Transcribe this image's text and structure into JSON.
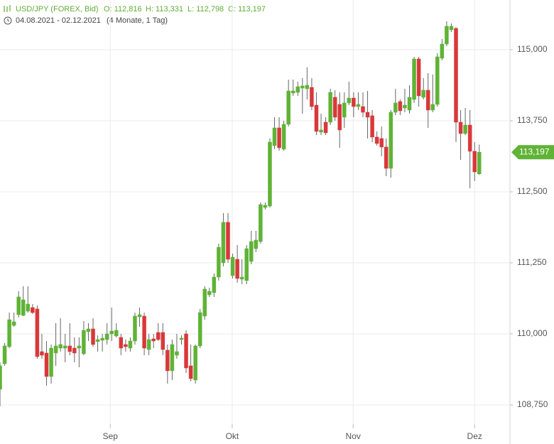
{
  "chart_data": {
    "type": "candlestick",
    "title": "USD/JPY (FOREX, Bid)",
    "ohlc_labels": [
      "O: 112,816",
      "H: 113,331",
      "L: 112,798",
      "C: 113,197"
    ],
    "date_range": "04.08.2021 - 02.12.2021",
    "duration": "(4 Monate, 1 Tag)",
    "last_label": "113,197",
    "up_color": "#5fb336",
    "down_color": "#d9383a",
    "grid": true,
    "ylim": [
      108.4125,
      115.875
    ],
    "yticks": [
      {
        "value": 108.75,
        "label": "108,750"
      },
      {
        "value": 110,
        "label": "110,000"
      },
      {
        "value": 111.25,
        "label": "111,250"
      },
      {
        "value": 112.5,
        "label": "112,500"
      },
      {
        "value": 113.75,
        "label": "113,750"
      },
      {
        "value": 115,
        "label": "115,000"
      }
    ],
    "xlim": [
      0,
      109.6
    ],
    "xticks": [
      {
        "value": 23.7,
        "label": "Sep"
      },
      {
        "value": 49.9,
        "label": "Okt"
      },
      {
        "value": 75.9,
        "label": "Nov"
      },
      {
        "value": 102,
        "label": "Dez"
      }
    ],
    "open": [
      109.025,
      109.475,
      109.775,
      110.15,
      110.338,
      110.325,
      110.4,
      110.463,
      110.438,
      109.688,
      109.663,
      109.25,
      109.663,
      109.75,
      109.75,
      109.788,
      109.75,
      109.75,
      109.65,
      110.038,
      110.088,
      109.863,
      109.888,
      109.9,
      110,
      109.963,
      109.938,
      109.813,
      109.75,
      109.875,
      110.3,
      110.313,
      109.725,
      109.913,
      110.025,
      110.025,
      109.713,
      109.35,
      109.625,
      109.9,
      110,
      109.438,
      109.188,
      109.788,
      110.313,
      110.688,
      110.725,
      111,
      111.25,
      111.963,
      111.025,
      111.313,
      110.963,
      110.938,
      111.275,
      111.5,
      111.625,
      112.225,
      112.25,
      113.313,
      113.625,
      113.25,
      113.688,
      114.238,
      114.25,
      114.325,
      114.313,
      114.338,
      114.025,
      113.55,
      113.725,
      113.725,
      114.163,
      114.038,
      113.813,
      114.063,
      114.15,
      114,
      114,
      113.9,
      113.838,
      113.463,
      113.438,
      113.288,
      112.913,
      113.9,
      114.088,
      113.975,
      113.938,
      114.125,
      114.838,
      114.163,
      114.288,
      113.938,
      114.038,
      114.85,
      115.1,
      115.35,
      115.375,
      113.725,
      113.525,
      113.675,
      113.213,
      112.816
    ],
    "high": [
      109.5,
      109.838,
      110.375,
      110.375,
      110.75,
      110.838,
      110.838,
      110.525,
      110.5,
      110,
      109.875,
      109.813,
      110.188,
      110.275,
      110,
      110.188,
      109.938,
      109.938,
      110.225,
      110.188,
      110.275,
      109.975,
      110,
      110.188,
      110.463,
      110.188,
      110,
      109.9,
      109.938,
      110.375,
      110.463,
      110.375,
      110,
      110,
      110.188,
      110.188,
      109.813,
      109.9,
      110,
      109.975,
      110.063,
      109.813,
      109.813,
      110.438,
      110.838,
      110.813,
      111.063,
      111.588,
      112.125,
      112.125,
      111.413,
      111.563,
      111.313,
      111.563,
      111.813,
      111.813,
      112.313,
      112.313,
      113.438,
      113.813,
      113.813,
      113.75,
      114.475,
      114.475,
      114.438,
      114.5,
      114.688,
      114.5,
      114.25,
      113.875,
      113.813,
      114.313,
      114.288,
      114.25,
      114.25,
      114.438,
      114.25,
      114.25,
      114.25,
      114.275,
      113.938,
      113.563,
      113.65,
      113.438,
      113.938,
      114.313,
      114.125,
      114.313,
      114.375,
      114.875,
      114.875,
      114.5,
      114.588,
      114.563,
      114.938,
      115.188,
      115.5,
      115.463,
      115.4,
      113.938,
      113.975,
      113.938,
      113.375,
      113.331
    ],
    "low": [
      108.725,
      109.438,
      109.75,
      110.125,
      110.288,
      110.313,
      110.375,
      110.35,
      109.563,
      109.563,
      109.088,
      109.125,
      109.438,
      109.688,
      109.5,
      109.625,
      109.5,
      109.413,
      109.625,
      109.875,
      109.775,
      109.688,
      109.688,
      109.813,
      109.875,
      109.938,
      109.625,
      109.688,
      109.688,
      109.813,
      110.125,
      109.625,
      109.625,
      109.75,
      109.875,
      109.625,
      109.125,
      109.188,
      109.563,
      109.813,
      109.313,
      109.163,
      109.125,
      109.75,
      110.25,
      110.65,
      110.65,
      110.938,
      111.188,
      111.25,
      110.975,
      110.9,
      110.875,
      110.875,
      111.225,
      111.438,
      111.588,
      112.188,
      112.225,
      113.25,
      113.225,
      113.225,
      113.65,
      114.188,
      114.188,
      113.875,
      114.125,
      113.938,
      113.5,
      113.5,
      113.5,
      113.675,
      113.75,
      113.275,
      113.625,
      114.025,
      113.813,
      113.938,
      113.813,
      113.438,
      113.375,
      113.313,
      113.125,
      112.775,
      112.75,
      113.85,
      113.85,
      113.9,
      113.875,
      114.063,
      114,
      114.125,
      113.625,
      113.9,
      114,
      114.813,
      115.063,
      115.313,
      113.375,
      113.063,
      113.5,
      112.563,
      112.688,
      112.798
    ],
    "close": [
      109.44,
      109.788,
      110.25,
      110.213,
      110.65,
      110.6,
      110.525,
      110.375,
      109.6,
      109.625,
      109.25,
      109.75,
      109.788,
      109.813,
      109.788,
      109.688,
      109.663,
      109.788,
      110.063,
      110.088,
      109.813,
      109.9,
      109.925,
      110,
      110.05,
      110.063,
      109.75,
      109.775,
      109.875,
      110.313,
      110.338,
      109.75,
      109.9,
      109.875,
      109.9,
      109.725,
      109.35,
      109.813,
      109.688,
      109.925,
      109.4,
      109.213,
      109.788,
      110.375,
      110.788,
      110.75,
      111,
      111.525,
      111.963,
      111.313,
      111.35,
      110.975,
      111,
      111.5,
      111.625,
      111.65,
      112.275,
      112.263,
      113.375,
      113.625,
      113.275,
      113.688,
      114.275,
      114.275,
      114.35,
      114.363,
      114.375,
      114,
      113.563,
      113.588,
      113.538,
      114.25,
      113.813,
      113.588,
      114.063,
      114.15,
      114,
      114.038,
      113.9,
      113.813,
      113.463,
      113.35,
      113.288,
      112.913,
      113.9,
      114.063,
      113.925,
      114.025,
      114.163,
      114.838,
      114.188,
      114.288,
      113.938,
      114.038,
      114.875,
      115.1,
      115.413,
      115.413,
      113.725,
      113.525,
      113.675,
      113.213,
      112.85,
      113.197
    ]
  }
}
